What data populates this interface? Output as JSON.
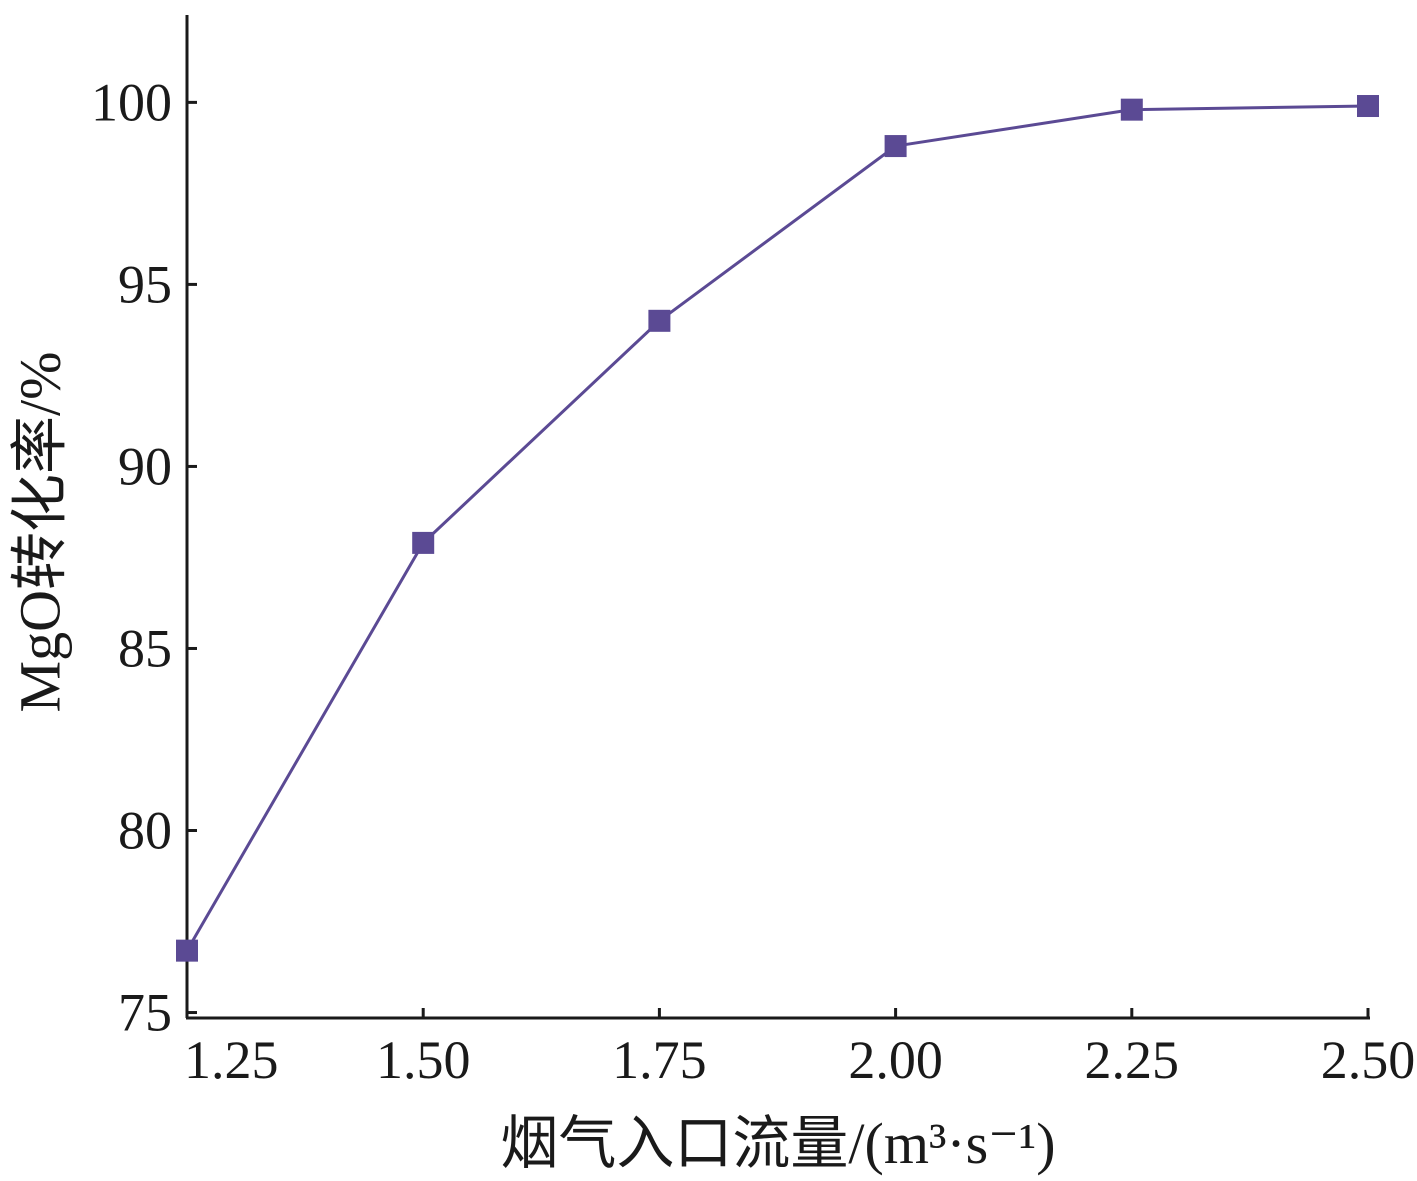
{
  "chart_data": {
    "type": "line",
    "xlabel": "烟气入口流量/(m³·s⁻¹)",
    "ylabel": "MgO转化率/%",
    "x": [
      1.25,
      1.5,
      1.75,
      2.0,
      2.25,
      2.5
    ],
    "xtick_labels": [
      "1.25",
      "1.50",
      "1.75",
      "2.00",
      "2.25",
      "2.50"
    ],
    "yticks": [
      75,
      80,
      85,
      90,
      95,
      100
    ],
    "ytick_labels": [
      "75",
      "80",
      "85",
      "90",
      "95",
      "100"
    ],
    "series": [
      {
        "values": [
          76.7,
          87.9,
          94.0,
          98.8,
          99.8,
          99.9
        ],
        "color": "#5b4a94"
      }
    ],
    "xlim": [
      1.25,
      2.5
    ],
    "ylim": [
      74.85,
      102.4
    ],
    "grid": false,
    "legend": "none"
  }
}
